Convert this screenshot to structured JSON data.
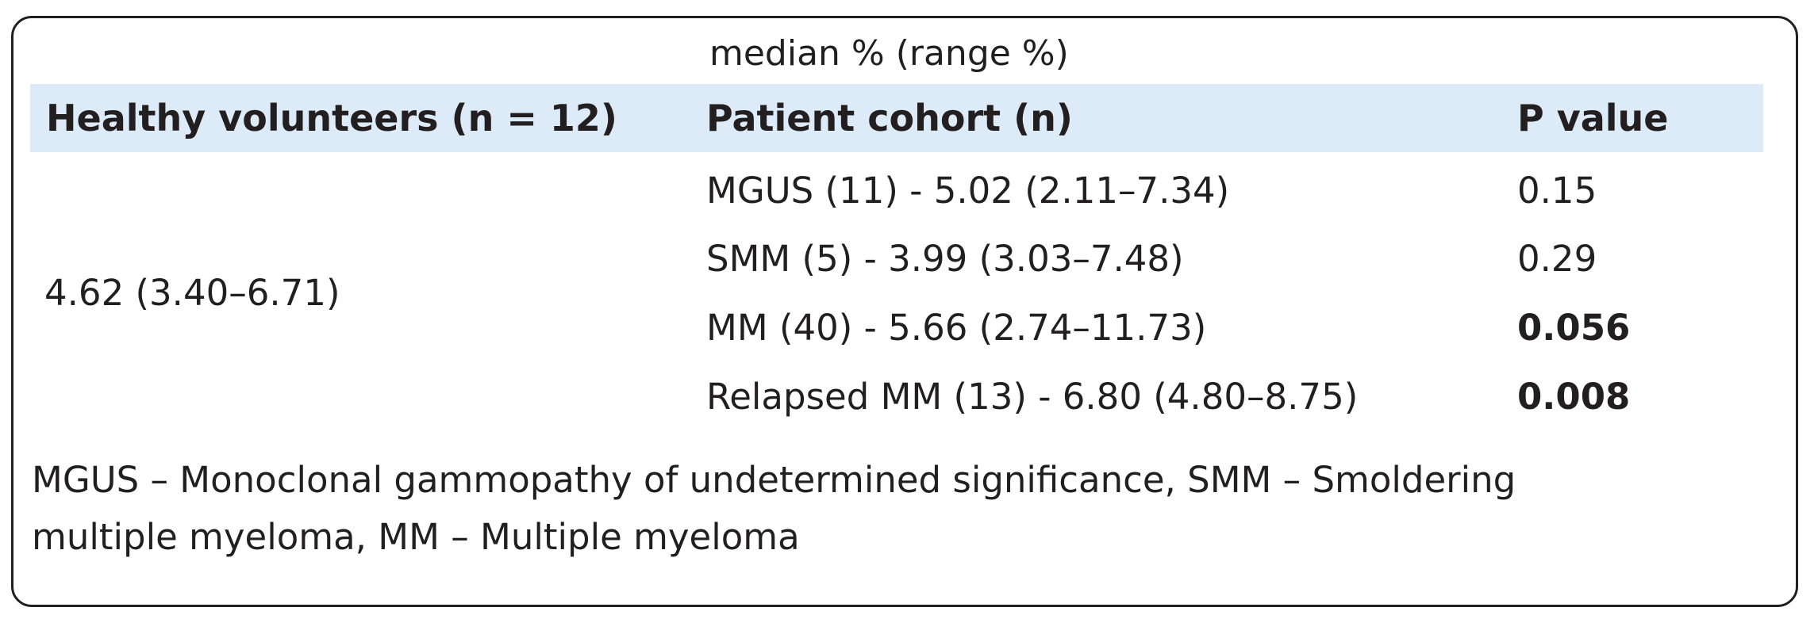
{
  "table": {
    "supheader": "median % (range %)",
    "headers": {
      "healthy": "Healthy volunteers (n = 12)",
      "cohort": "Patient cohort (n)",
      "p_value": "P value"
    },
    "healthy_value": "4.62 (3.40–6.71)",
    "rows": [
      {
        "cohort": "MGUS (11) - 5.02 (2.11–7.34)",
        "p_value": "0.15",
        "bold": false
      },
      {
        "cohort": "SMM (5) - 3.99 (3.03–7.48)",
        "p_value": "0.29",
        "bold": false
      },
      {
        "cohort": "MM (40) - 5.66 (2.74–11.73)",
        "p_value": "0.056",
        "bold": true
      },
      {
        "cohort": "Relapsed MM (13) - 6.80 (4.80–8.75)",
        "p_value": "0.008",
        "bold": true
      }
    ],
    "footnote": {
      "line1": "MGUS – Monoclonal gammopathy of undetermined significance, SMM – Smoldering",
      "line2": "multiple myeloma, MM – Multiple myeloma"
    }
  }
}
